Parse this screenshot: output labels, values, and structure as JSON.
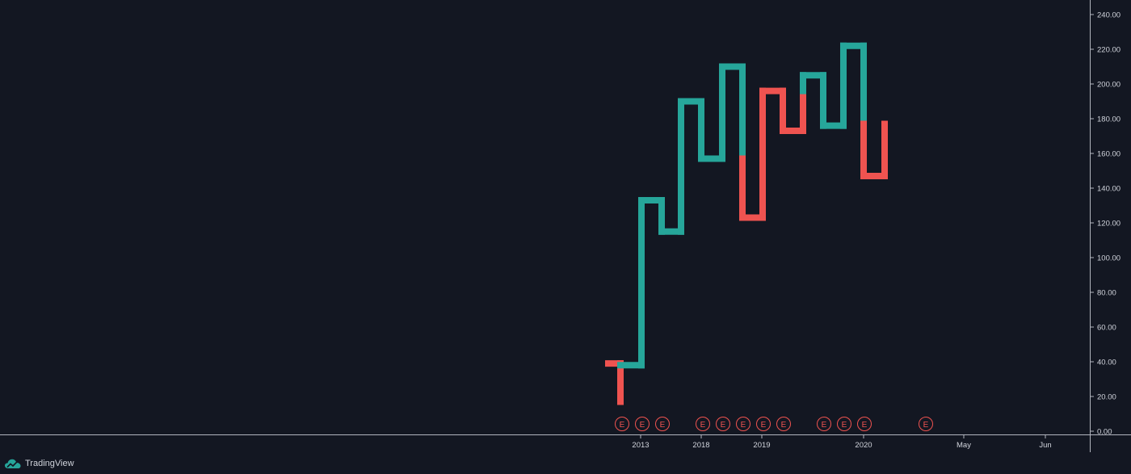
{
  "branding": {
    "name": "TradingView",
    "logo_icon": "tradingview-cloud-icon"
  },
  "colors": {
    "background": "#131722",
    "up": "#26a69a",
    "down": "#ef5350",
    "axis_text": "#d1d4dc",
    "earnings_marker": "#ef5350",
    "scale_border": "#b2b5be"
  },
  "earnings_marker": {
    "label": "E",
    "icon": "earnings-e-marker-icon"
  },
  "chart_data": {
    "type": "line",
    "style": "kagi",
    "title": "",
    "xlabel": "",
    "ylabel": "",
    "ylim": [
      0,
      240
    ],
    "grid": false,
    "y_ticks": [
      "0.00",
      "20.00",
      "40.00",
      "60.00",
      "80.00",
      "100.00",
      "120.00",
      "140.00",
      "160.00",
      "180.00",
      "200.00",
      "220.00",
      "240.00"
    ],
    "x_ticks": [
      "2013",
      "2018",
      "2019",
      "2020",
      "May",
      "Jun"
    ],
    "kagi_segments": [
      {
        "color": "down",
        "from": 39,
        "to": 17
      },
      {
        "color": "down",
        "from": 17,
        "to": 38
      },
      {
        "color": "up",
        "from": 38,
        "to": 133
      },
      {
        "color": "up",
        "from": 133,
        "to": 115
      },
      {
        "color": "up",
        "from": 115,
        "to": 190
      },
      {
        "color": "up",
        "from": 190,
        "to": 157
      },
      {
        "color": "up",
        "from": 157,
        "to": 210
      },
      {
        "color": "up",
        "from": 210,
        "to": 157
      },
      {
        "color": "down",
        "from": 157,
        "to": 123
      },
      {
        "color": "down",
        "from": 123,
        "to": 196
      },
      {
        "color": "down",
        "from": 196,
        "to": 173
      },
      {
        "color": "down",
        "from": 173,
        "to": 196
      },
      {
        "color": "up",
        "from": 196,
        "to": 205
      },
      {
        "color": "up",
        "from": 205,
        "to": 176
      },
      {
        "color": "up",
        "from": 176,
        "to": 222
      },
      {
        "color": "up",
        "from": 222,
        "to": 177
      },
      {
        "color": "down",
        "from": 177,
        "to": 147
      },
      {
        "color": "down",
        "from": 147,
        "to": 177
      }
    ],
    "earnings_events": 11
  }
}
